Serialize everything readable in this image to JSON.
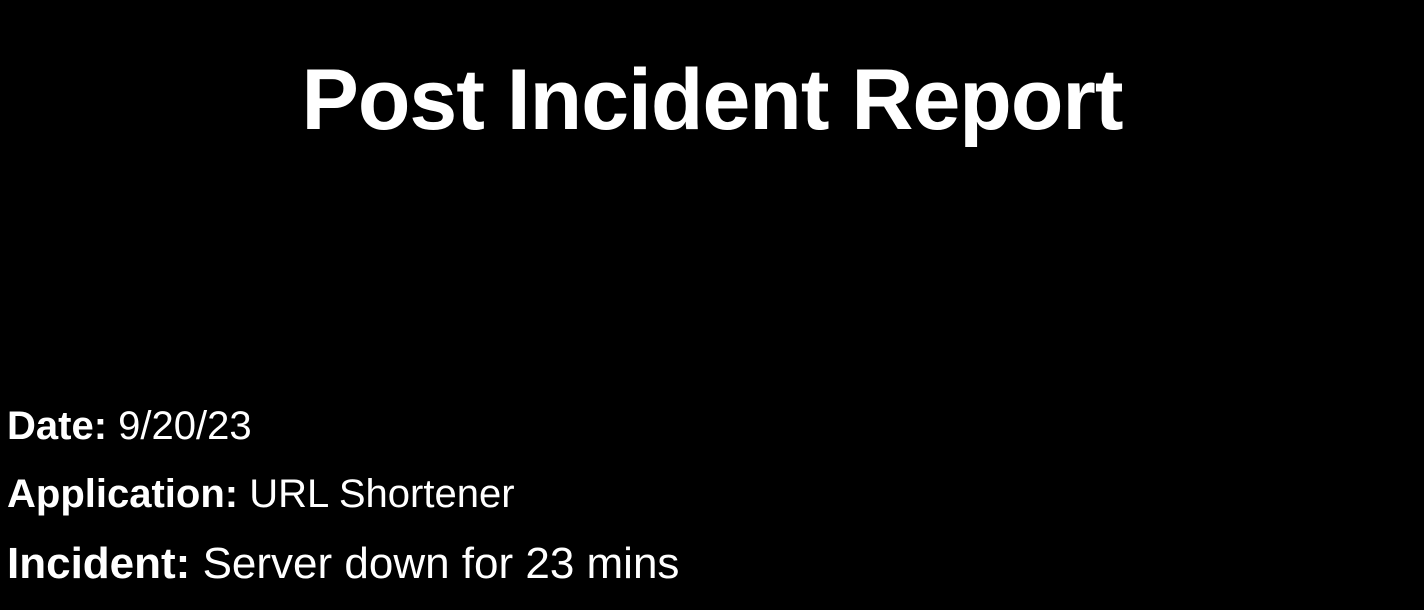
{
  "report": {
    "title": "Post Incident Report",
    "fields": {
      "date": {
        "label": "Date:",
        "value": "9/20/23"
      },
      "application": {
        "label": "Application:",
        "value": "URL Shortener"
      },
      "incident": {
        "label": "Incident:",
        "value": "Server down for 23 mins"
      }
    }
  },
  "colors": {
    "background": "#000000",
    "text": "#ffffff"
  }
}
